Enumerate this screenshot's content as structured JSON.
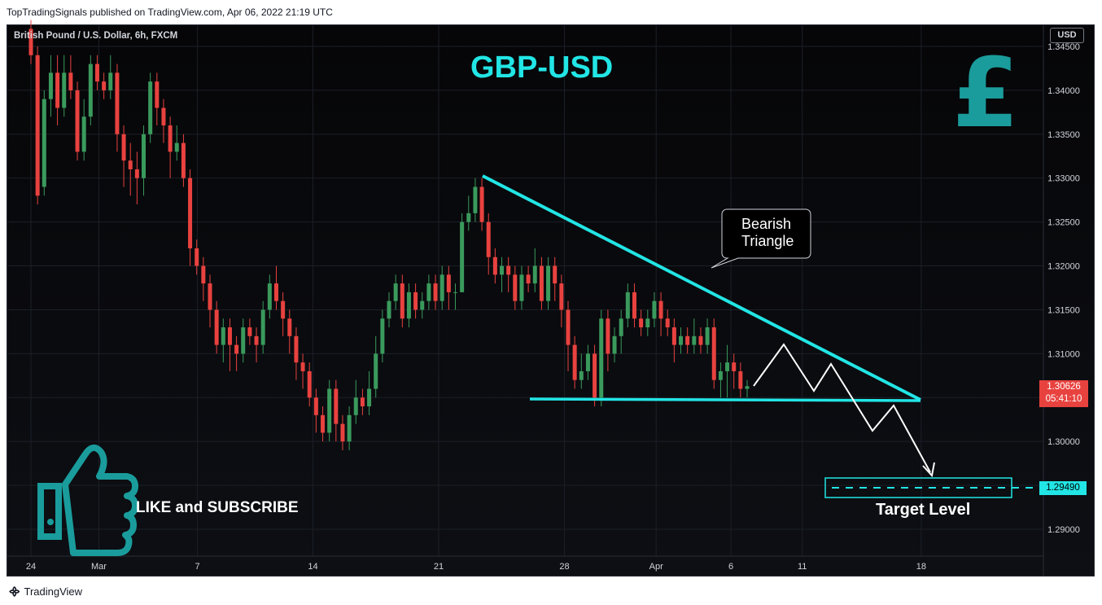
{
  "header": {
    "publisher_line": "TopTradingSignals published on TradingView.com, Apr 06, 2022 21:19 UTC",
    "symbol": "British Pound / U.S. Dollar, 6h, FXCM",
    "currency": "USD",
    "brand": "TradingView"
  },
  "chart_data": {
    "type": "candlestick",
    "title": "GBP-USD",
    "y_ticks": [
      "1.34500",
      "1.34000",
      "1.33500",
      "1.33000",
      "1.32500",
      "1.32000",
      "1.31500",
      "1.31000",
      "1.30500",
      "1.30000",
      "1.29500",
      "1.29000"
    ],
    "y_tick_values": [
      1.345,
      1.34,
      1.335,
      1.33,
      1.325,
      1.32,
      1.315,
      1.31,
      1.305,
      1.3,
      1.295,
      1.29
    ],
    "x_ticks": [
      "24",
      "Mar",
      "7",
      "14",
      "21",
      "28",
      "Apr",
      "6",
      "11",
      "18"
    ],
    "last_price": "1.30626",
    "countdown": "05:41:10",
    "target_price": "1.29490",
    "annotations": {
      "pattern_label_line1": "Bearish",
      "pattern_label_line2": "Triangle",
      "target_label": "Target Level",
      "cta": "LIKE and SUBSCRIBE"
    },
    "candles": [
      [
        1.347,
        1.344,
        1.348,
        1.343
      ],
      [
        1.344,
        1.328,
        1.345,
        1.327
      ],
      [
        1.329,
        1.339,
        1.34,
        1.328
      ],
      [
        1.339,
        1.342,
        1.344,
        1.337
      ],
      [
        1.342,
        1.338,
        1.344,
        1.336
      ],
      [
        1.338,
        1.342,
        1.344,
        1.337
      ],
      [
        1.342,
        1.34,
        1.344,
        1.339
      ],
      [
        1.34,
        1.333,
        1.341,
        1.332
      ],
      [
        1.333,
        1.337,
        1.339,
        1.332
      ],
      [
        1.337,
        1.343,
        1.344,
        1.336
      ],
      [
        1.343,
        1.341,
        1.344,
        1.34
      ],
      [
        1.341,
        1.34,
        1.342,
        1.339
      ],
      [
        1.34,
        1.342,
        1.344,
        1.339
      ],
      [
        1.342,
        1.335,
        1.343,
        1.333
      ],
      [
        1.335,
        1.332,
        1.336,
        1.329
      ],
      [
        1.332,
        1.331,
        1.334,
        1.328
      ],
      [
        1.331,
        1.33,
        1.333,
        1.327
      ],
      [
        1.33,
        1.335,
        1.336,
        1.328
      ],
      [
        1.335,
        1.341,
        1.342,
        1.334
      ],
      [
        1.341,
        1.338,
        1.342,
        1.336
      ],
      [
        1.338,
        1.336,
        1.339,
        1.334
      ],
      [
        1.336,
        1.333,
        1.337,
        1.33
      ],
      [
        1.333,
        1.334,
        1.336,
        1.332
      ],
      [
        1.334,
        1.33,
        1.335,
        1.329
      ],
      [
        1.33,
        1.322,
        1.331,
        1.32
      ],
      [
        1.322,
        1.32,
        1.323,
        1.319
      ],
      [
        1.32,
        1.318,
        1.321,
        1.316
      ],
      [
        1.318,
        1.315,
        1.319,
        1.313
      ],
      [
        1.315,
        1.311,
        1.316,
        1.31
      ],
      [
        1.311,
        1.313,
        1.314,
        1.309
      ],
      [
        1.313,
        1.311,
        1.314,
        1.308
      ],
      [
        1.311,
        1.31,
        1.312,
        1.308
      ],
      [
        1.31,
        1.313,
        1.314,
        1.309
      ],
      [
        1.313,
        1.312,
        1.314,
        1.311
      ],
      [
        1.312,
        1.311,
        1.313,
        1.309
      ],
      [
        1.311,
        1.315,
        1.316,
        1.31
      ],
      [
        1.315,
        1.318,
        1.319,
        1.314
      ],
      [
        1.318,
        1.316,
        1.32,
        1.315
      ],
      [
        1.316,
        1.314,
        1.317,
        1.312
      ],
      [
        1.314,
        1.312,
        1.315,
        1.31
      ],
      [
        1.312,
        1.309,
        1.313,
        1.307
      ],
      [
        1.309,
        1.308,
        1.31,
        1.306
      ],
      [
        1.308,
        1.305,
        1.309,
        1.304
      ],
      [
        1.305,
        1.303,
        1.306,
        1.301
      ],
      [
        1.303,
        1.301,
        1.304,
        1.3
      ],
      [
        1.301,
        1.306,
        1.307,
        1.3
      ],
      [
        1.306,
        1.302,
        1.307,
        1.3
      ],
      [
        1.302,
        1.3,
        1.303,
        1.299
      ],
      [
        1.3,
        1.303,
        1.304,
        1.299
      ],
      [
        1.303,
        1.305,
        1.307,
        1.302
      ],
      [
        1.305,
        1.304,
        1.306,
        1.303
      ],
      [
        1.304,
        1.306,
        1.308,
        1.303
      ],
      [
        1.306,
        1.31,
        1.312,
        1.305
      ],
      [
        1.31,
        1.314,
        1.315,
        1.309
      ],
      [
        1.314,
        1.316,
        1.317,
        1.313
      ],
      [
        1.316,
        1.318,
        1.319,
        1.315
      ],
      [
        1.318,
        1.314,
        1.319,
        1.313
      ],
      [
        1.314,
        1.317,
        1.318,
        1.313
      ],
      [
        1.317,
        1.315,
        1.318,
        1.314
      ],
      [
        1.315,
        1.316,
        1.317,
        1.314
      ],
      [
        1.316,
        1.318,
        1.319,
        1.315
      ],
      [
        1.318,
        1.316,
        1.319,
        1.315
      ],
      [
        1.316,
        1.319,
        1.32,
        1.315
      ],
      [
        1.319,
        1.317,
        1.32,
        1.315
      ],
      [
        1.317,
        1.317,
        1.318,
        1.315
      ],
      [
        1.317,
        1.325,
        1.326,
        1.317
      ],
      [
        1.325,
        1.326,
        1.328,
        1.324
      ],
      [
        1.326,
        1.329,
        1.33,
        1.325
      ],
      [
        1.329,
        1.325,
        1.33,
        1.324
      ],
      [
        1.325,
        1.321,
        1.326,
        1.319
      ],
      [
        1.321,
        1.319,
        1.322,
        1.318
      ],
      [
        1.319,
        1.32,
        1.321,
        1.317
      ],
      [
        1.32,
        1.319,
        1.321,
        1.317
      ],
      [
        1.319,
        1.316,
        1.32,
        1.315
      ],
      [
        1.316,
        1.319,
        1.32,
        1.315
      ],
      [
        1.319,
        1.318,
        1.32,
        1.317
      ],
      [
        1.318,
        1.32,
        1.322,
        1.317
      ],
      [
        1.32,
        1.316,
        1.321,
        1.315
      ],
      [
        1.316,
        1.32,
        1.321,
        1.315
      ],
      [
        1.32,
        1.318,
        1.321,
        1.316
      ],
      [
        1.318,
        1.315,
        1.319,
        1.313
      ],
      [
        1.315,
        1.311,
        1.316,
        1.308
      ],
      [
        1.311,
        1.307,
        1.312,
        1.306
      ],
      [
        1.307,
        1.308,
        1.31,
        1.306
      ],
      [
        1.308,
        1.31,
        1.311,
        1.307
      ],
      [
        1.31,
        1.305,
        1.311,
        1.304
      ],
      [
        1.305,
        1.314,
        1.315,
        1.304
      ],
      [
        1.314,
        1.31,
        1.315,
        1.308
      ],
      [
        1.31,
        1.312,
        1.313,
        1.309
      ],
      [
        1.312,
        1.314,
        1.315,
        1.31
      ],
      [
        1.314,
        1.317,
        1.318,
        1.313
      ],
      [
        1.317,
        1.314,
        1.318,
        1.313
      ],
      [
        1.314,
        1.313,
        1.315,
        1.312
      ],
      [
        1.313,
        1.314,
        1.315,
        1.312
      ],
      [
        1.314,
        1.316,
        1.317,
        1.313
      ],
      [
        1.316,
        1.314,
        1.317,
        1.312
      ],
      [
        1.314,
        1.313,
        1.315,
        1.312
      ],
      [
        1.313,
        1.311,
        1.314,
        1.309
      ],
      [
        1.311,
        1.312,
        1.313,
        1.31
      ],
      [
        1.312,
        1.311,
        1.313,
        1.31
      ],
      [
        1.311,
        1.312,
        1.314,
        1.31
      ],
      [
        1.312,
        1.311,
        1.313,
        1.31
      ],
      [
        1.311,
        1.313,
        1.314,
        1.31
      ],
      [
        1.313,
        1.307,
        1.314,
        1.306
      ],
      [
        1.307,
        1.308,
        1.309,
        1.305
      ],
      [
        1.308,
        1.309,
        1.311,
        1.305
      ],
      [
        1.309,
        1.308,
        1.31,
        1.306
      ],
      [
        1.308,
        1.306,
        1.309,
        1.305
      ],
      [
        1.306,
        1.3063,
        1.307,
        1.305
      ]
    ],
    "colors": {
      "up": "#3a9a5c",
      "down": "#e8423f",
      "triangle": "#22e5e5",
      "projection": "#ffffff",
      "grid": "#1b1f27",
      "axis_text": "#d1d4dc"
    }
  }
}
